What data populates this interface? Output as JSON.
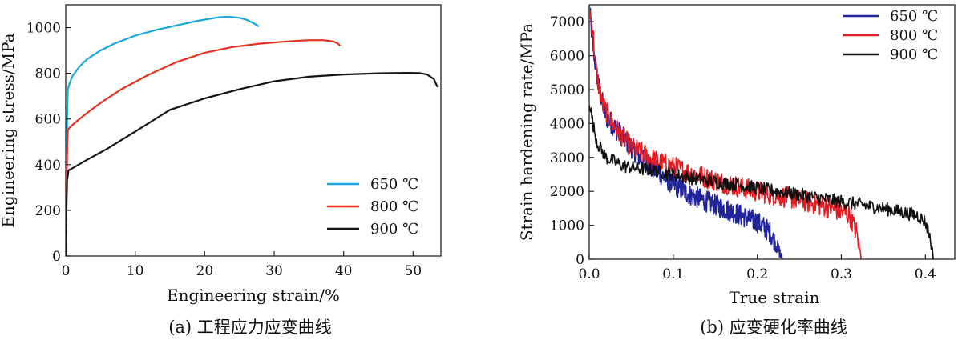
{
  "chart_data": [
    {
      "type": "line",
      "caption": "(a) 工程应力应变曲线",
      "xlabel": "Engineering strain/%",
      "ylabel": "Engineering stress/MPa",
      "xlim": [
        0,
        54
      ],
      "ylim": [
        0,
        1100
      ],
      "xticks": [
        "0",
        "10",
        "20",
        "30",
        "40",
        "50"
      ],
      "xtick_values": [
        0,
        10,
        20,
        30,
        40,
        50
      ],
      "yticks": [
        "0",
        "200",
        "400",
        "600",
        "800",
        "1000"
      ],
      "ytick_values": [
        0,
        200,
        400,
        600,
        800,
        1000
      ],
      "grid": false,
      "legend_position": "bottom-right",
      "series": [
        {
          "name": "650 ℃",
          "color": "#1aa6dc",
          "points": [
            [
              0,
              0
            ],
            [
              0.1,
              300
            ],
            [
              0.2,
              600
            ],
            [
              0.3,
              730
            ],
            [
              0.6,
              760
            ],
            [
              1,
              790
            ],
            [
              2,
              830
            ],
            [
              3,
              860
            ],
            [
              5,
              900
            ],
            [
              7,
              930
            ],
            [
              10,
              965
            ],
            [
              13,
              990
            ],
            [
              16,
              1010
            ],
            [
              19,
              1030
            ],
            [
              21,
              1040
            ],
            [
              22,
              1045
            ],
            [
              23,
              1047
            ],
            [
              24,
              1046
            ],
            [
              25,
              1043
            ],
            [
              26,
              1035
            ],
            [
              27,
              1020
            ],
            [
              27.8,
              1005
            ]
          ]
        },
        {
          "name": "800 ℃",
          "color": "#e8301f",
          "points": [
            [
              0,
              0
            ],
            [
              0.1,
              250
            ],
            [
              0.2,
              450
            ],
            [
              0.3,
              550
            ],
            [
              0.5,
              560
            ],
            [
              1,
              575
            ],
            [
              2,
              600
            ],
            [
              3,
              625
            ],
            [
              5,
              670
            ],
            [
              8,
              730
            ],
            [
              12,
              795
            ],
            [
              16,
              850
            ],
            [
              20,
              890
            ],
            [
              24,
              915
            ],
            [
              28,
              930
            ],
            [
              32,
              940
            ],
            [
              35,
              945
            ],
            [
              37,
              945
            ],
            [
              38.5,
              940
            ],
            [
              39.2,
              930
            ],
            [
              39.5,
              920
            ]
          ]
        },
        {
          "name": "900 ℃",
          "color": "#141414",
          "points": [
            [
              0,
              0
            ],
            [
              0.1,
              200
            ],
            [
              0.2,
              330
            ],
            [
              0.4,
              375
            ],
            [
              1,
              385
            ],
            [
              3,
              420
            ],
            [
              6,
              470
            ],
            [
              10,
              545
            ],
            [
              15,
              640
            ],
            [
              20,
              690
            ],
            [
              25,
              730
            ],
            [
              30,
              765
            ],
            [
              35,
              785
            ],
            [
              40,
              795
            ],
            [
              45,
              800
            ],
            [
              49,
              802
            ],
            [
              51,
              801
            ],
            [
              52,
              795
            ],
            [
              53,
              775
            ],
            [
              53.5,
              740
            ]
          ]
        }
      ]
    },
    {
      "type": "line",
      "caption": "(b) 应变硬化率曲线",
      "xlabel": "True strain",
      "ylabel": "Strain hardening rate/MPa",
      "xlim": [
        0,
        0.435
      ],
      "ylim": [
        0,
        7500
      ],
      "xticks": [
        "0.0",
        "0.1",
        "0.2",
        "0.3",
        "0.4"
      ],
      "xtick_values": [
        0,
        0.1,
        0.2,
        0.3,
        0.4
      ],
      "yticks": [
        "0",
        "1000",
        "2000",
        "3000",
        "4000",
        "5000",
        "6000",
        "7000"
      ],
      "ytick_values": [
        0,
        1000,
        2000,
        3000,
        4000,
        5000,
        6000,
        7000
      ],
      "grid": false,
      "legend_position": "top-right",
      "series": [
        {
          "name": "650 ℃",
          "color": "#20239a",
          "noise": 320,
          "points": [
            [
              0.0,
              7400
            ],
            [
              0.005,
              6200
            ],
            [
              0.01,
              5200
            ],
            [
              0.02,
              4200
            ],
            [
              0.04,
              3600
            ],
            [
              0.06,
              3000
            ],
            [
              0.08,
              2600
            ],
            [
              0.1,
              2200
            ],
            [
              0.12,
              1900
            ],
            [
              0.15,
              1600
            ],
            [
              0.18,
              1300
            ],
            [
              0.2,
              1100
            ],
            [
              0.215,
              800
            ],
            [
              0.225,
              300
            ],
            [
              0.23,
              0
            ]
          ]
        },
        {
          "name": "800 ℃",
          "color": "#e31b23",
          "noise": 320,
          "points": [
            [
              0.0,
              7400
            ],
            [
              0.004,
              6800
            ],
            [
              0.008,
              5600
            ],
            [
              0.015,
              4600
            ],
            [
              0.03,
              3900
            ],
            [
              0.05,
              3300
            ],
            [
              0.08,
              2900
            ],
            [
              0.12,
              2550
            ],
            [
              0.16,
              2250
            ],
            [
              0.2,
              2000
            ],
            [
              0.25,
              1750
            ],
            [
              0.29,
              1500
            ],
            [
              0.31,
              1300
            ],
            [
              0.318,
              800
            ],
            [
              0.324,
              0
            ]
          ]
        },
        {
          "name": "900 ℃",
          "color": "#111111",
          "noise": 200,
          "points": [
            [
              0.0,
              4700
            ],
            [
              0.005,
              3900
            ],
            [
              0.01,
              3400
            ],
            [
              0.02,
              3000
            ],
            [
              0.04,
              2750
            ],
            [
              0.08,
              2600
            ],
            [
              0.12,
              2400
            ],
            [
              0.16,
              2250
            ],
            [
              0.2,
              2100
            ],
            [
              0.25,
              1900
            ],
            [
              0.3,
              1700
            ],
            [
              0.35,
              1500
            ],
            [
              0.39,
              1300
            ],
            [
              0.4,
              1100
            ],
            [
              0.405,
              700
            ],
            [
              0.41,
              0
            ]
          ]
        }
      ]
    }
  ]
}
